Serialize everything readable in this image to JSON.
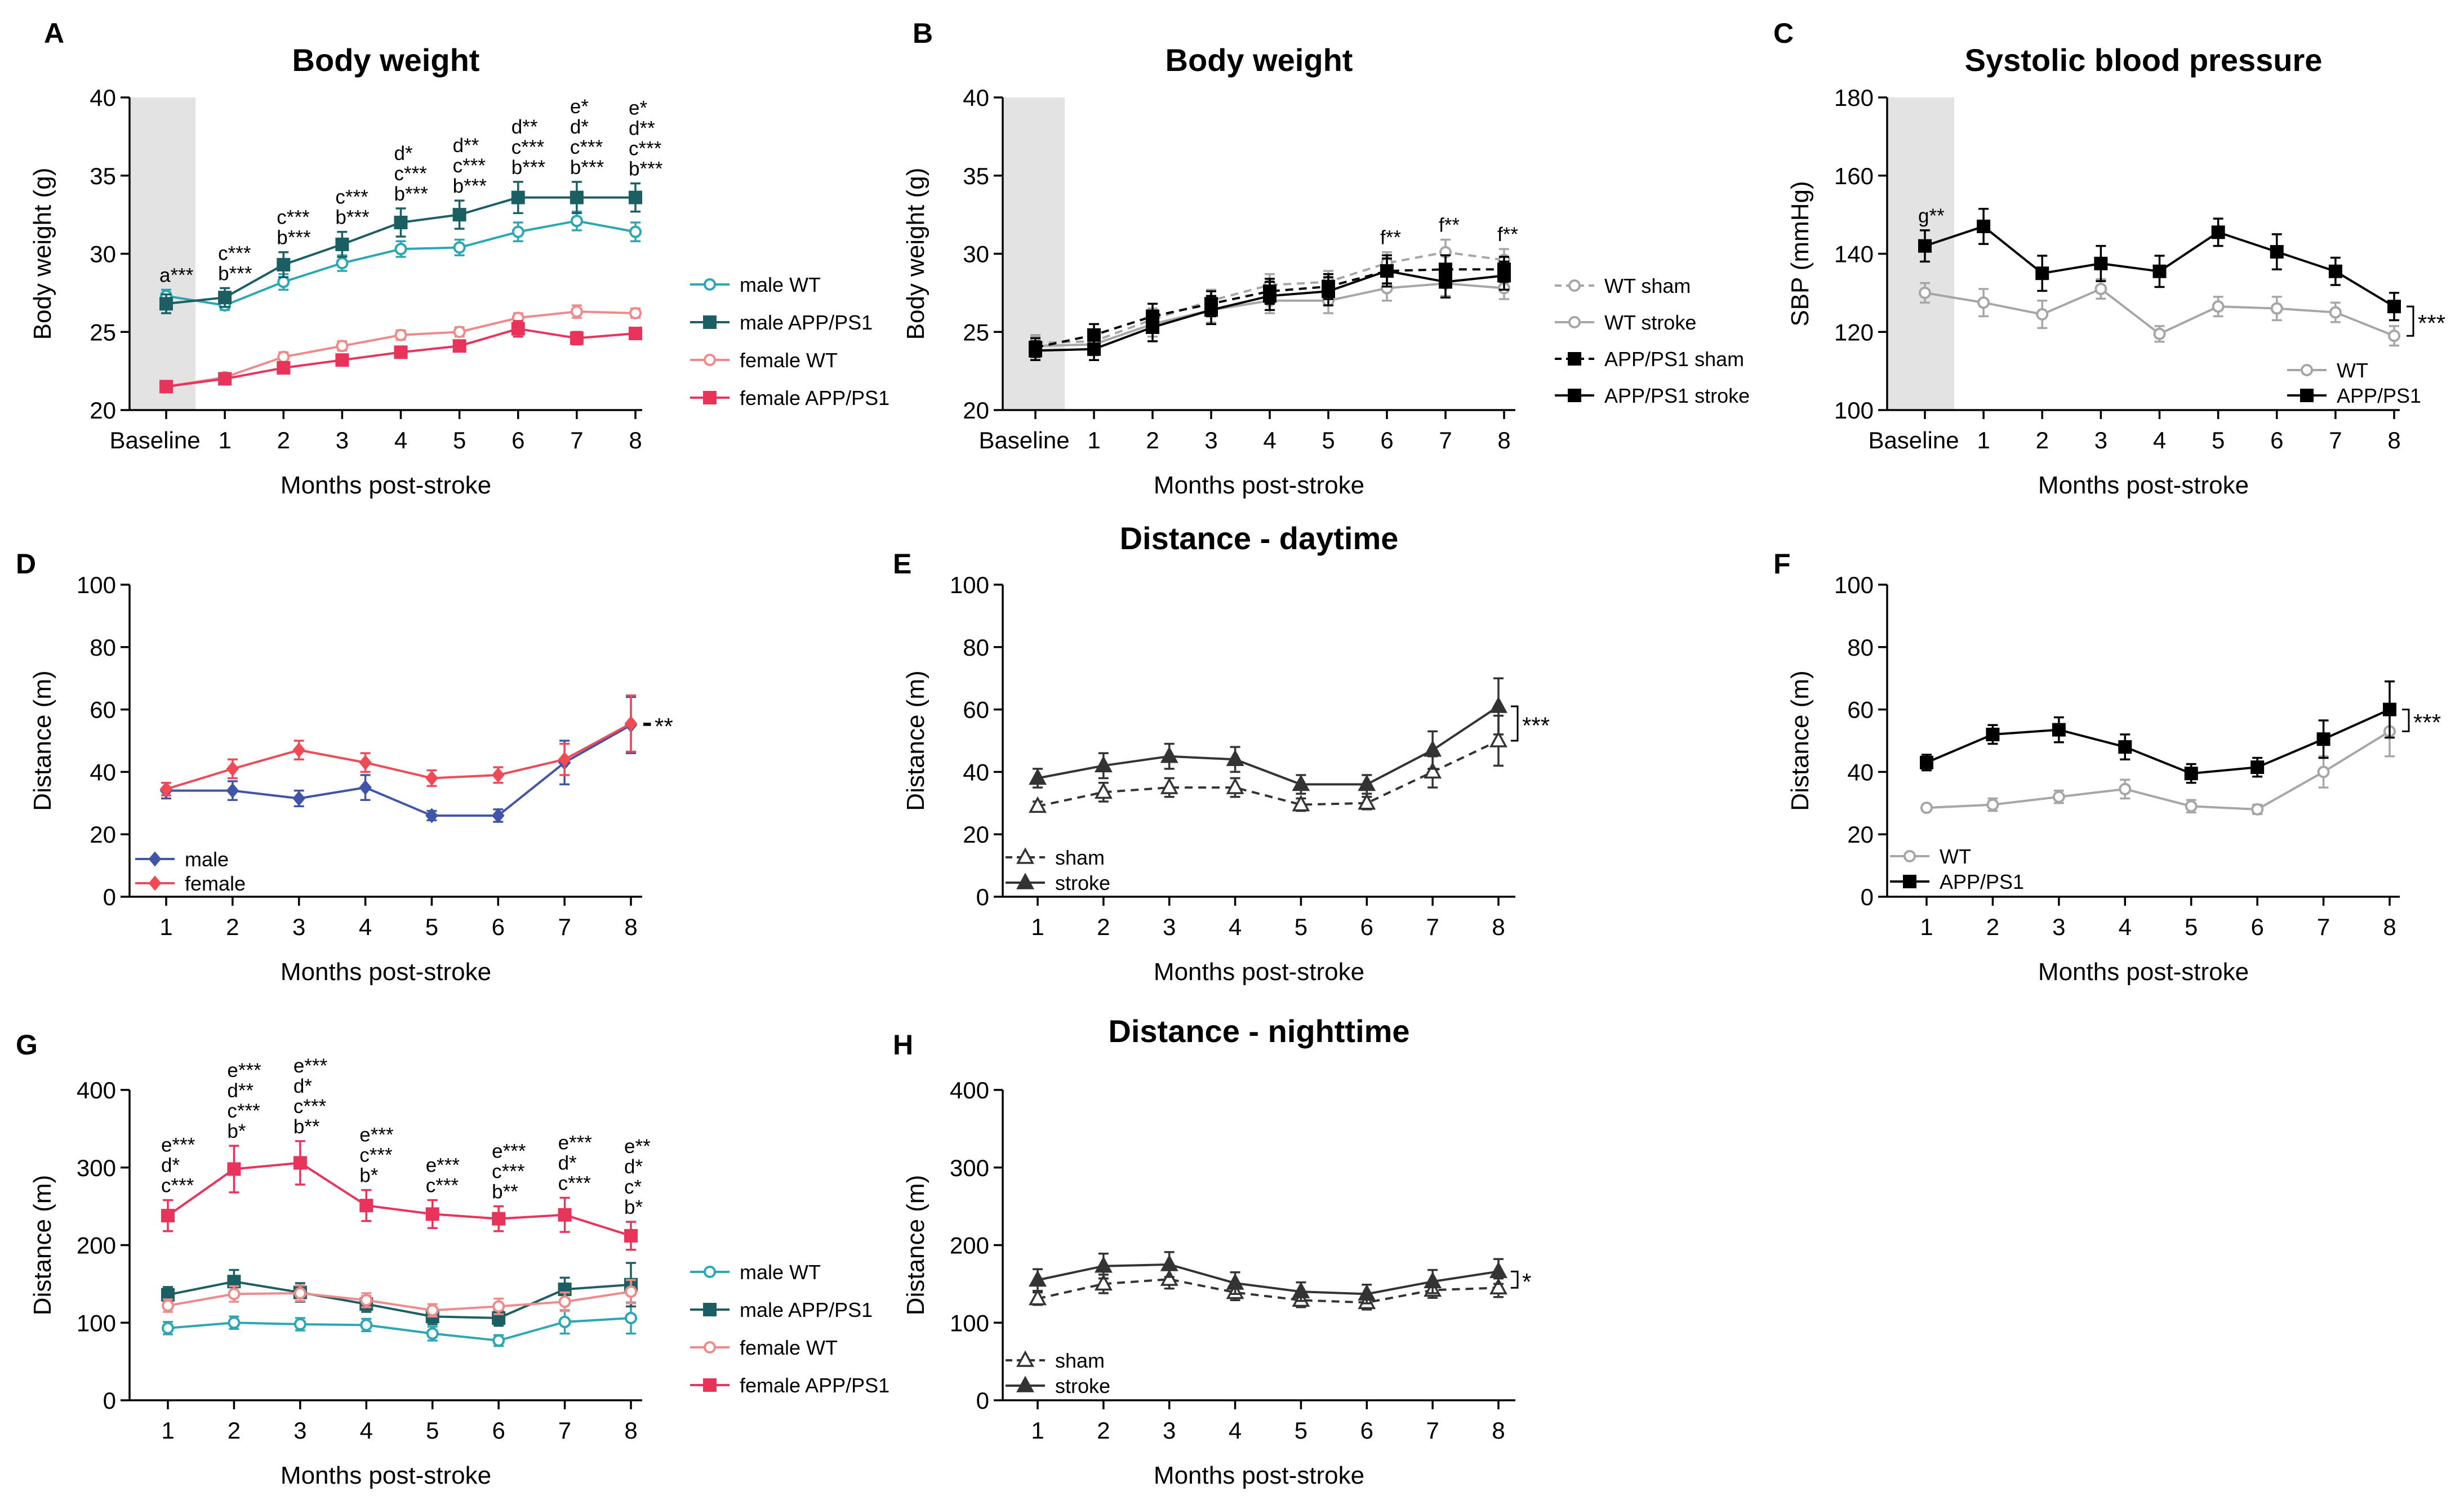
{
  "figure": {
    "x_axis_label": "Months post-stroke",
    "star_symbol": "*"
  },
  "chart_data": [
    {
      "id": "A",
      "letter": "A",
      "type": "line",
      "title": "Body weight",
      "xlabel": "Months post-stroke",
      "ylabel": "Body weight (g)",
      "categories": [
        "Baseline",
        "1",
        "2",
        "3",
        "4",
        "5",
        "6",
        "7",
        "8"
      ],
      "yticks": [
        "20",
        "25",
        "30",
        "35",
        "40"
      ],
      "ylim": [
        20,
        40
      ],
      "shaded_baseline": true,
      "series": [
        {
          "name": "male WT",
          "color": "#2aa7b3",
          "marker": "circle-open",
          "dash": false,
          "values": [
            27.3,
            26.7,
            28.2,
            29.4,
            30.3,
            30.4,
            31.4,
            32.1,
            31.4
          ],
          "errors": [
            0.4,
            0.3,
            0.5,
            0.5,
            0.5,
            0.5,
            0.6,
            0.6,
            0.6
          ]
        },
        {
          "name": "male APP/PS1",
          "color": "#1b5f63",
          "marker": "square",
          "dash": false,
          "values": [
            26.8,
            27.2,
            29.3,
            30.6,
            32.0,
            32.5,
            33.6,
            33.6,
            33.6
          ],
          "errors": [
            0.6,
            0.6,
            0.8,
            0.8,
            0.9,
            0.9,
            1.0,
            1.0,
            0.9
          ]
        },
        {
          "name": "female WT",
          "color": "#f08a8a",
          "marker": "circle-open",
          "dash": false,
          "values": [
            21.5,
            22.1,
            23.4,
            24.1,
            24.8,
            25.0,
            25.9,
            26.3,
            26.2
          ],
          "errors": [
            0.2,
            0.2,
            0.3,
            0.3,
            0.3,
            0.3,
            0.3,
            0.4,
            0.3
          ]
        },
        {
          "name": "female APP/PS1",
          "color": "#e8335a",
          "marker": "square",
          "dash": false,
          "values": [
            21.5,
            22.0,
            22.7,
            23.2,
            23.7,
            24.1,
            25.2,
            24.6,
            24.9
          ],
          "errors": [
            0.2,
            0.3,
            0.3,
            0.3,
            0.3,
            0.3,
            0.5,
            0.4,
            0.3
          ]
        }
      ],
      "annotations": [
        {
          "x": 0,
          "lines": [
            "a***"
          ]
        },
        {
          "x": 1,
          "lines": [
            "c***",
            "b***"
          ]
        },
        {
          "x": 2,
          "lines": [
            "c***",
            "b***"
          ]
        },
        {
          "x": 3,
          "lines": [
            "c***",
            "b***"
          ]
        },
        {
          "x": 4,
          "lines": [
            "d*",
            "c***",
            "b***"
          ]
        },
        {
          "x": 5,
          "lines": [
            "d**",
            "c***",
            "b***"
          ]
        },
        {
          "x": 6,
          "lines": [
            "d**",
            "c***",
            "b***"
          ]
        },
        {
          "x": 7,
          "lines": [
            "e*",
            "d*",
            "c***",
            "b***"
          ]
        },
        {
          "x": 8,
          "lines": [
            "e*",
            "d**",
            "c***",
            "b***"
          ]
        }
      ],
      "legend_position": "right"
    },
    {
      "id": "B",
      "letter": "B",
      "type": "line",
      "title": "Body weight",
      "xlabel": "Months post-stroke",
      "ylabel": "Body weight (g)",
      "categories": [
        "Baseline",
        "1",
        "2",
        "3",
        "4",
        "5",
        "6",
        "7",
        "8"
      ],
      "yticks": [
        "20",
        "25",
        "30",
        "35",
        "40"
      ],
      "ylim": [
        20,
        40
      ],
      "shaded_baseline": true,
      "series": [
        {
          "name": "WT sham",
          "color": "#a6a6a6",
          "marker": "circle-open",
          "dash": true,
          "values": [
            24.3,
            24.4,
            25.8,
            27.0,
            28.0,
            28.2,
            29.4,
            30.1,
            29.6
          ],
          "errors": [
            0.5,
            0.6,
            0.7,
            0.7,
            0.7,
            0.7,
            0.7,
            0.8,
            0.7
          ]
        },
        {
          "name": "WT stroke",
          "color": "#a6a6a6",
          "marker": "circle-open",
          "dash": false,
          "values": [
            24.1,
            24.2,
            25.5,
            26.4,
            27.0,
            27.0,
            27.8,
            28.1,
            27.8
          ],
          "errors": [
            0.6,
            0.7,
            0.8,
            0.8,
            0.8,
            0.8,
            0.8,
            0.8,
            0.7
          ]
        },
        {
          "name": "APP/PS1 sham",
          "color": "#000000",
          "marker": "square",
          "dash": true,
          "values": [
            24.0,
            24.8,
            26.0,
            26.8,
            27.6,
            27.9,
            28.9,
            29.0,
            29.0
          ],
          "errors": [
            0.6,
            0.7,
            0.8,
            0.8,
            0.8,
            0.8,
            0.8,
            0.9,
            0.8
          ]
        },
        {
          "name": "APP/PS1 stroke",
          "color": "#000000",
          "marker": "square",
          "dash": false,
          "values": [
            23.8,
            23.9,
            25.3,
            26.4,
            27.3,
            27.6,
            28.9,
            28.2,
            28.6
          ],
          "errors": [
            0.6,
            0.7,
            0.9,
            0.9,
            0.9,
            0.9,
            1.0,
            1.0,
            0.9
          ]
        }
      ],
      "annotations": [
        {
          "x": 6,
          "lines": [
            "f**"
          ]
        },
        {
          "x": 7,
          "lines": [
            "f**"
          ]
        },
        {
          "x": 8,
          "lines": [
            "f**"
          ]
        }
      ],
      "legend_position": "right"
    },
    {
      "id": "C",
      "letter": "C",
      "type": "line",
      "title": "Systolic blood pressure",
      "xlabel": "Months post-stroke",
      "ylabel": "SBP (mmHg)",
      "categories": [
        "Baseline",
        "1",
        "2",
        "3",
        "4",
        "5",
        "6",
        "7",
        "8"
      ],
      "yticks": [
        "100",
        "120",
        "140",
        "160",
        "180"
      ],
      "ylim": [
        100,
        180
      ],
      "shaded_baseline": true,
      "series": [
        {
          "name": "WT",
          "color": "#a6a6a6",
          "marker": "circle-open",
          "dash": false,
          "values": [
            130,
            127.5,
            124.5,
            131,
            119.5,
            126.5,
            126,
            125,
            119
          ],
          "errors": [
            2.5,
            3.5,
            3.5,
            2.5,
            2.0,
            2.5,
            3.0,
            2.5,
            2.5
          ]
        },
        {
          "name": "APP/PS1",
          "color": "#000000",
          "marker": "square",
          "dash": false,
          "values": [
            142,
            147,
            135,
            137.5,
            135.5,
            145.5,
            140.5,
            135.5,
            126.5
          ],
          "errors": [
            4.0,
            4.5,
            4.5,
            4.5,
            4.0,
            3.5,
            4.5,
            3.5,
            3.5
          ]
        }
      ],
      "annotations": [
        {
          "x": 0,
          "lines": [
            "g**"
          ]
        }
      ],
      "significance": "***",
      "legend_position": "bottom-right"
    },
    {
      "id": "D",
      "letter": "D",
      "type": "line",
      "title": "",
      "xlabel": "Months post-stroke",
      "ylabel": "Distance (m)",
      "categories": [
        "1",
        "2",
        "3",
        "4",
        "5",
        "6",
        "7",
        "8"
      ],
      "yticks": [
        "0",
        "20",
        "40",
        "60",
        "80",
        "100"
      ],
      "ylim": [
        0,
        100
      ],
      "series": [
        {
          "name": "male",
          "color": "#4055a8",
          "marker": "diamond",
          "dash": false,
          "values": [
            34,
            34,
            31.5,
            35,
            26,
            26,
            43,
            55
          ],
          "errors": [
            2.5,
            3,
            2.5,
            4,
            1.5,
            2,
            7,
            9
          ]
        },
        {
          "name": "female",
          "color": "#ef4a55",
          "marker": "diamond",
          "dash": false,
          "values": [
            34.5,
            41,
            47,
            43,
            38,
            39,
            44,
            55.5
          ],
          "errors": [
            2,
            3,
            3,
            3,
            2.5,
            2.5,
            5,
            9
          ]
        }
      ],
      "annotations": [],
      "significance": "**",
      "legend_position": "bottom-left"
    },
    {
      "id": "E",
      "letter": "E",
      "type": "line",
      "title": "Distance - daytime",
      "xlabel": "Months post-stroke",
      "ylabel": "Distance (m)",
      "categories": [
        "1",
        "2",
        "3",
        "4",
        "5",
        "6",
        "7",
        "8"
      ],
      "yticks": [
        "0",
        "20",
        "40",
        "60",
        "80",
        "100"
      ],
      "ylim": [
        0,
        100
      ],
      "series": [
        {
          "name": "sham",
          "color": "#333333",
          "marker": "triangle-open",
          "dash": true,
          "values": [
            29,
            33.5,
            35,
            35,
            29.5,
            30,
            40,
            50
          ],
          "errors": [
            1.5,
            3,
            3,
            3,
            2,
            2,
            5,
            8
          ]
        },
        {
          "name": "stroke",
          "color": "#333333",
          "marker": "triangle",
          "dash": false,
          "values": [
            38,
            42,
            45,
            44,
            36,
            36,
            47,
            61
          ],
          "errors": [
            3,
            4,
            4,
            4,
            3,
            3,
            6,
            9
          ]
        }
      ],
      "annotations": [],
      "significance": "***",
      "legend_position": "bottom-left"
    },
    {
      "id": "F",
      "letter": "F",
      "type": "line",
      "title": "",
      "xlabel": "Months post-stroke",
      "ylabel": "Distance (m)",
      "categories": [
        "1",
        "2",
        "3",
        "4",
        "5",
        "6",
        "7",
        "8"
      ],
      "yticks": [
        "0",
        "20",
        "40",
        "60",
        "80",
        "100"
      ],
      "ylim": [
        0,
        100
      ],
      "series": [
        {
          "name": "WT",
          "color": "#a6a6a6",
          "marker": "circle-open",
          "dash": false,
          "values": [
            28.5,
            29.5,
            32,
            34.5,
            29,
            28,
            40,
            53
          ],
          "errors": [
            1,
            2,
            2,
            3,
            2,
            1.5,
            5,
            8
          ]
        },
        {
          "name": "APP/PS1",
          "color": "#000000",
          "marker": "square",
          "dash": false,
          "values": [
            43,
            52,
            53.5,
            48,
            39.5,
            41.5,
            50.5,
            60
          ],
          "errors": [
            2.5,
            3,
            4,
            4,
            3,
            3,
            6,
            9
          ]
        }
      ],
      "annotations": [],
      "significance": "***",
      "legend_position": "bottom-left"
    },
    {
      "id": "G",
      "letter": "G",
      "type": "line",
      "title": "",
      "xlabel": "Months post-stroke",
      "ylabel": "Distance (m)",
      "categories": [
        "1",
        "2",
        "3",
        "4",
        "5",
        "6",
        "7",
        "8"
      ],
      "yticks": [
        "0",
        "100",
        "200",
        "300",
        "400"
      ],
      "ylim": [
        0,
        400
      ],
      "series": [
        {
          "name": "male WT",
          "color": "#2aa7b3",
          "marker": "circle-open",
          "dash": false,
          "values": [
            93,
            100,
            98,
            97,
            86,
            77,
            101,
            106
          ],
          "errors": [
            8,
            8,
            8,
            8,
            9,
            7,
            15,
            20
          ]
        },
        {
          "name": "male APP/PS1",
          "color": "#1b5f63",
          "marker": "square",
          "dash": false,
          "values": [
            136,
            153,
            139,
            124,
            108,
            106,
            143,
            149
          ],
          "errors": [
            10,
            15,
            12,
            10,
            10,
            10,
            15,
            28
          ]
        },
        {
          "name": "female WT",
          "color": "#f08a8a",
          "marker": "circle-open",
          "dash": false,
          "values": [
            122,
            137,
            138,
            129,
            116,
            121,
            127,
            140
          ],
          "errors": [
            8,
            10,
            10,
            9,
            8,
            10,
            12,
            15
          ]
        },
        {
          "name": "female APP/PS1",
          "color": "#e8335a",
          "marker": "square",
          "dash": false,
          "values": [
            238,
            298,
            306,
            251,
            240,
            234,
            239,
            212
          ],
          "errors": [
            20,
            30,
            28,
            20,
            18,
            16,
            22,
            18
          ]
        }
      ],
      "annotations": [
        {
          "x": 0,
          "lines": [
            "e***",
            "d*",
            "c***"
          ]
        },
        {
          "x": 1,
          "lines": [
            "e***",
            "d**",
            "c***",
            "b*"
          ]
        },
        {
          "x": 2,
          "lines": [
            "e***",
            "d*",
            "c***",
            "b**"
          ]
        },
        {
          "x": 3,
          "lines": [
            "e***",
            "c***",
            "b*"
          ]
        },
        {
          "x": 4,
          "lines": [
            "e***",
            "c***"
          ]
        },
        {
          "x": 5,
          "lines": [
            "e***",
            "c***",
            "b**"
          ]
        },
        {
          "x": 6,
          "lines": [
            "e***",
            "d*",
            "c***"
          ]
        },
        {
          "x": 7,
          "lines": [
            "e**",
            "d*",
            "c*",
            "b*"
          ]
        }
      ],
      "legend_position": "right"
    },
    {
      "id": "H",
      "letter": "H",
      "type": "line",
      "title": "Distance - nighttime",
      "xlabel": "Months post-stroke",
      "ylabel": "Distance (m)",
      "categories": [
        "1",
        "2",
        "3",
        "4",
        "5",
        "6",
        "7",
        "8"
      ],
      "yticks": [
        "0",
        "100",
        "200",
        "300",
        "400"
      ],
      "ylim": [
        0,
        400
      ],
      "series": [
        {
          "name": "sham",
          "color": "#333333",
          "marker": "triangle-open",
          "dash": true,
          "values": [
            131,
            150,
            156,
            139,
            129,
            126,
            142,
            145
          ],
          "errors": [
            8,
            12,
            12,
            10,
            9,
            9,
            10,
            12
          ]
        },
        {
          "name": "stroke",
          "color": "#333333",
          "marker": "triangle",
          "dash": false,
          "values": [
            155,
            173,
            175,
            151,
            140,
            137,
            153,
            166
          ],
          "errors": [
            14,
            16,
            16,
            14,
            12,
            12,
            15,
            16
          ]
        }
      ],
      "annotations": [],
      "significance": "*",
      "legend_position": "bottom-left"
    }
  ]
}
